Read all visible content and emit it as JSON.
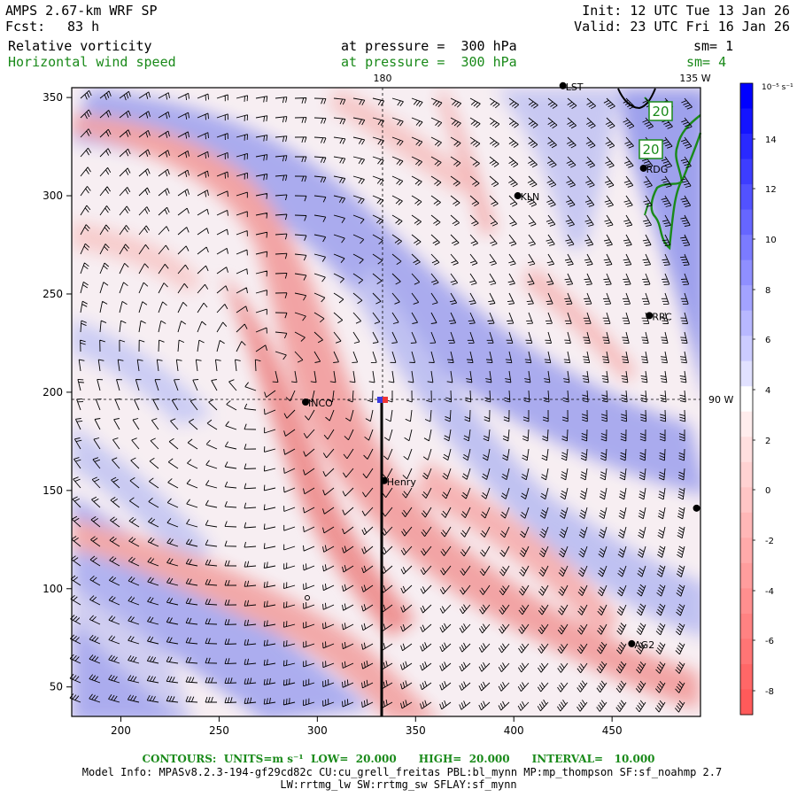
{
  "header": {
    "model": "AMPS 2.67-km WRF SP",
    "fcst_label": "Fcst:",
    "fcst_value": "83 h",
    "init": "Init: 12 UTC Tue 13 Jan 26",
    "valid": "Valid: 23 UTC Fri 16 Jan 26",
    "field1_name": "Relative vorticity",
    "field1_level": "at pressure =  300 hPa",
    "field1_sm": "sm= 1",
    "field2_name": "Horizontal wind speed",
    "field2_level": "at pressure =  300 hPa",
    "field2_sm": "sm= 4"
  },
  "map": {
    "meridian_label_top": "180",
    "corner_label_top": "135 W",
    "parallel_label_right": "90 W",
    "x_ticks": [
      "200",
      "250",
      "300",
      "350",
      "400",
      "450"
    ],
    "y_ticks": [
      "50",
      "100",
      "150",
      "200",
      "250",
      "300",
      "350"
    ],
    "contour_labels": [
      "20",
      "20"
    ],
    "stations": [
      {
        "name": "LST",
        "x": 425,
        "y": 356
      },
      {
        "name": "RDG",
        "x": 466,
        "y": 314
      },
      {
        "name": "KLN",
        "x": 402,
        "y": 300
      },
      {
        "name": "RRC",
        "x": 469,
        "y": 239
      },
      {
        "name": "INCO",
        "x": 294,
        "y": 195
      },
      {
        "name": "Henry",
        "x": 334,
        "y": 155
      },
      {
        "name": "AG2",
        "x": 460,
        "y": 72
      },
      {
        "name": "",
        "x": 493,
        "y": 141
      }
    ],
    "colors": {
      "positive": "#4848e8",
      "negative": "#f05050",
      "wind_contour": "#1a8a1a"
    }
  },
  "colorbar": {
    "unit": "10⁻⁵ s⁻¹",
    "labels": [
      "14",
      "12",
      "10",
      "8",
      "6",
      "4",
      "2",
      "0",
      "-2",
      "-4",
      "-6",
      "-8"
    ]
  },
  "footer": {
    "contours_line": "CONTOURS:  UNITS=m s⁻¹  LOW=  20.000      HIGH=  20.000      INTERVAL=   10.000",
    "model_info": "Model Info: MPASv8.2.3-194-gf29cd82c CU:cu_grell_freitas PBL:bl_mynn MP:mp_thompson SF:sf_noahmp 2.7",
    "model_info2": "LW:rrtmg_lw SW:rrtmg_sw SFLAY:sf_mynn"
  }
}
